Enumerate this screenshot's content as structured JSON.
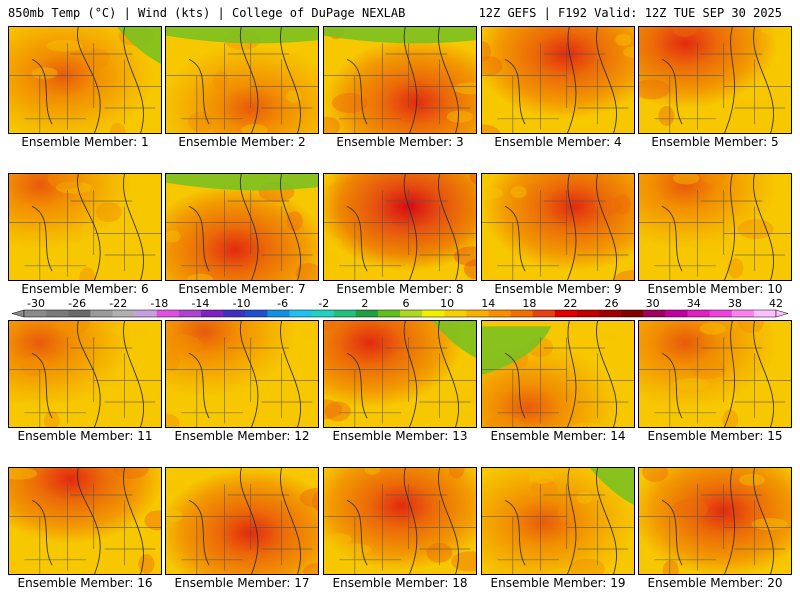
{
  "header": {
    "left": "850mb Temp (°C) | Wind (kts) | College of DuPage NEXLAB",
    "right": "12Z GEFS | F192 Valid: 12Z TUE SEP 30 2025"
  },
  "panels": [
    {
      "label": "Ensemble Member: 1",
      "hot": [
        0.35,
        0.45
      ],
      "cold": "tr",
      "scheme": "yellow"
    },
    {
      "label": "Ensemble Member: 2",
      "hot": [
        0.55,
        0.75
      ],
      "cold": "top",
      "scheme": "yellow"
    },
    {
      "label": "Ensemble Member: 3",
      "hot": [
        0.6,
        0.7
      ],
      "cold": "top",
      "scheme": "orange"
    },
    {
      "label": "Ensemble Member: 4",
      "hot": [
        0.55,
        0.25
      ],
      "cold": "none",
      "scheme": "orange"
    },
    {
      "label": "Ensemble Member: 5",
      "hot": [
        0.3,
        0.15
      ],
      "cold": "none",
      "scheme": "orange"
    },
    {
      "label": "Ensemble Member: 6",
      "hot": [
        0.2,
        0.1
      ],
      "cold": "none",
      "scheme": "yellow"
    },
    {
      "label": "Ensemble Member: 7",
      "hot": [
        0.45,
        0.7
      ],
      "cold": "top",
      "scheme": "orange"
    },
    {
      "label": "Ensemble Member: 8",
      "hot": [
        0.55,
        0.3
      ],
      "cold": "none",
      "scheme": "red"
    },
    {
      "label": "Ensemble Member: 9",
      "hot": [
        0.6,
        0.3
      ],
      "cold": "none",
      "scheme": "orange"
    },
    {
      "label": "Ensemble Member: 10",
      "hot": [
        0.3,
        0.1
      ],
      "cold": "none",
      "scheme": "yellow"
    },
    {
      "label": "Ensemble Member: 11",
      "hot": [
        0.2,
        0.2
      ],
      "cold": "none",
      "scheme": "yellow"
    },
    {
      "label": "Ensemble Member: 12",
      "hot": [
        0.25,
        0.1
      ],
      "cold": "none",
      "scheme": "yellow"
    },
    {
      "label": "Ensemble Member: 13",
      "hot": [
        0.3,
        0.2
      ],
      "cold": "tr",
      "scheme": "orange"
    },
    {
      "label": "Ensemble Member: 14",
      "hot": [
        0.3,
        0.8
      ],
      "cold": "tl",
      "scheme": "yellow"
    },
    {
      "label": "Ensemble Member: 15",
      "hot": [
        0.3,
        0.2
      ],
      "cold": "none",
      "scheme": "yellow"
    },
    {
      "label": "Ensemble Member: 16",
      "hot": [
        0.4,
        0.1
      ],
      "cold": "none",
      "scheme": "orange"
    },
    {
      "label": "Ensemble Member: 17",
      "hot": [
        0.55,
        0.6
      ],
      "cold": "none",
      "scheme": "orange"
    },
    {
      "label": "Ensemble Member: 18",
      "hot": [
        0.5,
        0.35
      ],
      "cold": "none",
      "scheme": "orange"
    },
    {
      "label": "Ensemble Member: 19",
      "hot": [
        0.4,
        0.5
      ],
      "cold": "tr",
      "scheme": "yellow"
    },
    {
      "label": "Ensemble Member: 20",
      "hot": [
        0.55,
        0.4
      ],
      "cold": "none",
      "scheme": "orange"
    }
  ],
  "colorbar": {
    "ticks": [
      "-30",
      "-26",
      "-22",
      "-18",
      "-14",
      "-10",
      "-6",
      "-2",
      "2",
      "6",
      "10",
      "14",
      "18",
      "22",
      "26",
      "30",
      "34",
      "38",
      "42"
    ],
    "colors": [
      "#8a8a8a",
      "#7a7a7a",
      "#6a6a6a",
      "#9a9a9a",
      "#b0b0b0",
      "#c8a0e0",
      "#e050e0",
      "#b040d0",
      "#8020c0",
      "#4030c0",
      "#2050d0",
      "#1090e0",
      "#20c0f0",
      "#20d0c0",
      "#20c080",
      "#20a040",
      "#60c020",
      "#b0d820",
      "#f0f000",
      "#f8d000",
      "#f8b000",
      "#f89000",
      "#f07000",
      "#e84010",
      "#e00000",
      "#c00000",
      "#a00000",
      "#800000",
      "#a00060",
      "#c000a0",
      "#e020c0",
      "#f040e0",
      "#ff80f0",
      "#ffc0ff"
    ]
  }
}
